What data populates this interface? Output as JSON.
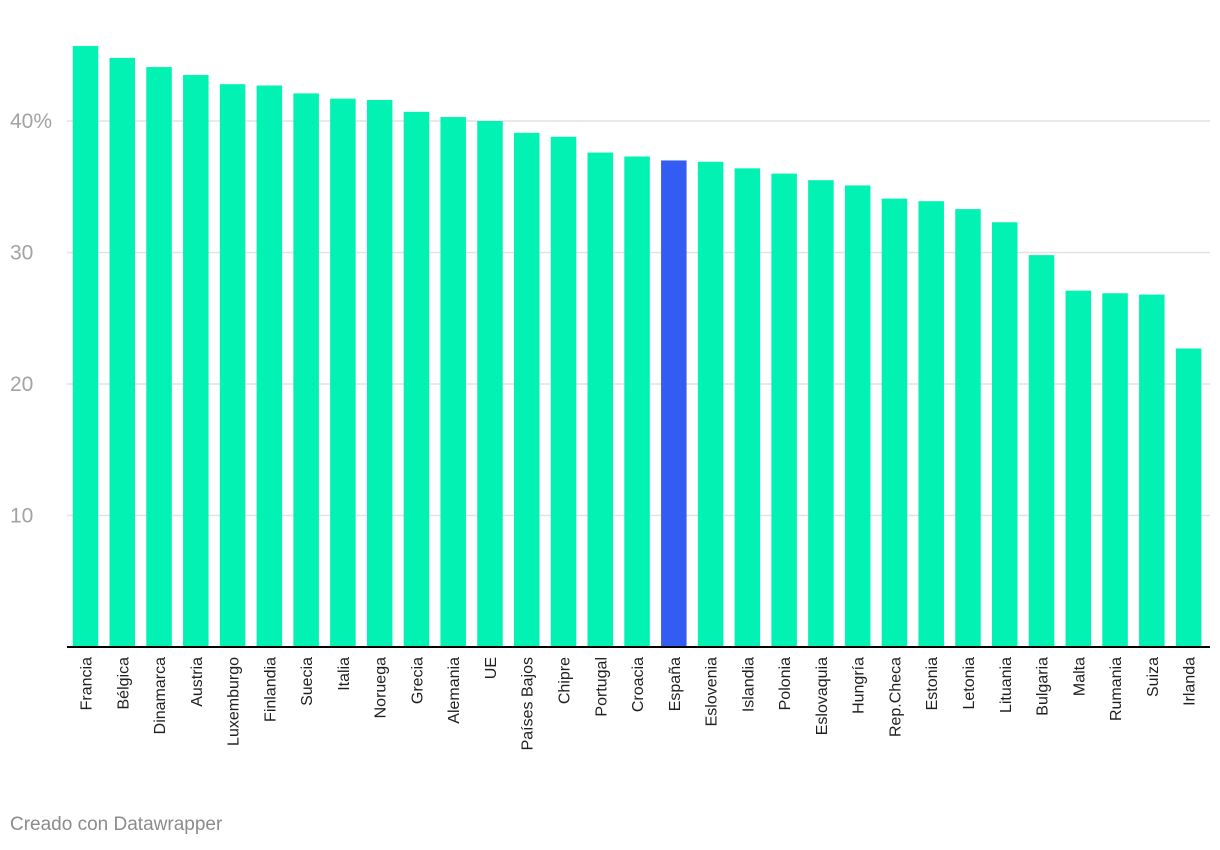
{
  "chart_data": {
    "type": "bar",
    "categories": [
      "Francia",
      "Bélgica",
      "Dinamarca",
      "Austria",
      "Luxemburgo",
      "Finlandia",
      "Suecia",
      "Italia",
      "Noruega",
      "Grecia",
      "Alemania",
      "UE",
      "Países Bajos",
      "Chipre",
      "Portugal",
      "Croacia",
      "España",
      "Eslovenia",
      "Islandia",
      "Polonia",
      "Eslovaquia",
      "Hungría",
      "Rep.Checa",
      "Estonia",
      "Letonia",
      "Lituania",
      "Bulgaria",
      "Malta",
      "Rumania",
      "Suiza",
      "Irlanda"
    ],
    "values": [
      45.7,
      44.8,
      44.1,
      43.5,
      42.8,
      42.7,
      42.1,
      41.7,
      41.6,
      40.7,
      40.3,
      40.0,
      39.1,
      38.8,
      37.6,
      37.3,
      37.0,
      36.9,
      36.4,
      36.0,
      35.5,
      35.1,
      34.1,
      33.9,
      33.3,
      32.3,
      29.8,
      27.1,
      26.9,
      26.8,
      22.7
    ],
    "highlight": "España",
    "colors": {
      "default": "#01f2b2",
      "highlight": "#325cf2",
      "grid": "#e2e2e2",
      "axis": "#000000"
    },
    "yticks": [
      {
        "value": 10,
        "label": "10"
      },
      {
        "value": 20,
        "label": "20"
      },
      {
        "value": 30,
        "label": "30"
      },
      {
        "value": 40,
        "label": "40%"
      }
    ],
    "ylim": [
      0,
      48
    ],
    "grid": true,
    "legend": "none",
    "title": "",
    "xlabel": "",
    "ylabel": ""
  },
  "footer": {
    "credit": "Creado con Datawrapper"
  }
}
